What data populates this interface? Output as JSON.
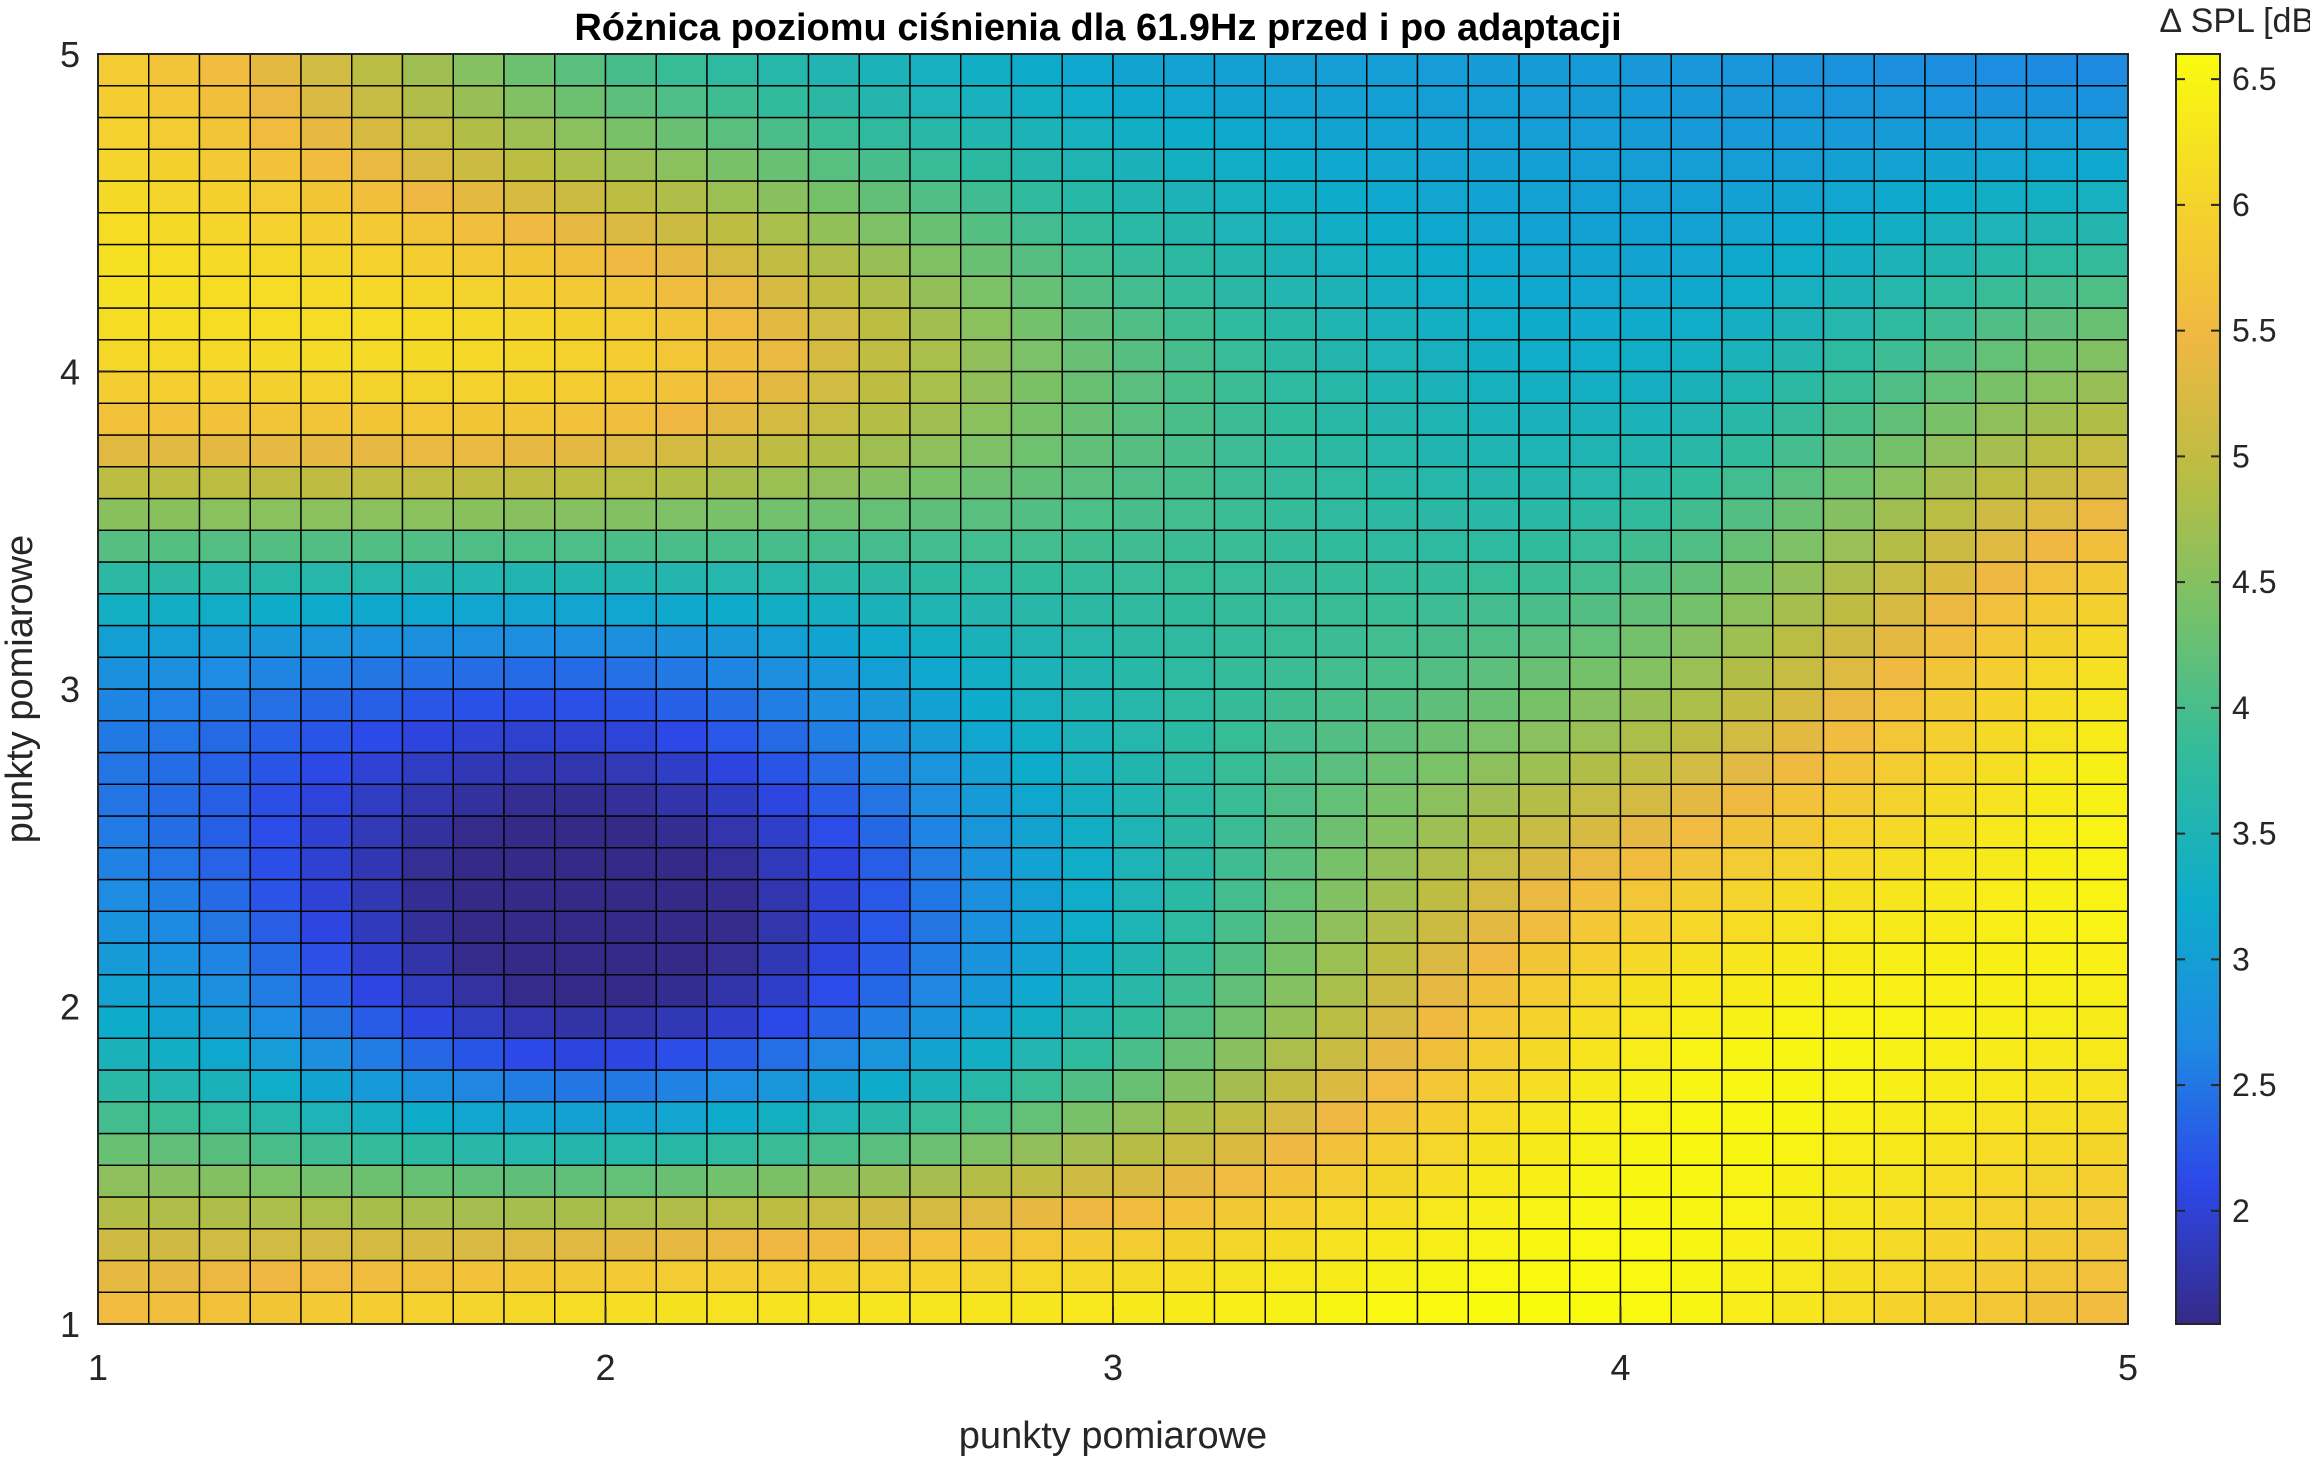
{
  "chart_data": {
    "type": "heatmap",
    "title": "Różnica poziomu ciśnienia dla 61.9Hz przed i po adaptacji",
    "xlabel": "punkty pomiarowe",
    "ylabel": "punkty pomiarowe",
    "xlim": [
      1,
      5
    ],
    "ylim": [
      1,
      5
    ],
    "x_ticks": [
      "1",
      "2",
      "3",
      "4",
      "5"
    ],
    "y_ticks": [
      "1",
      "2",
      "3",
      "4",
      "5"
    ],
    "grid_cells": [
      40,
      40
    ],
    "colormap": "parula",
    "colorbar": {
      "label": "∆ SPL [dB]",
      "range": [
        1.55,
        6.6
      ],
      "ticks": [
        "2",
        "2.5",
        "3",
        "3.5",
        "4",
        "4.5",
        "5",
        "5.5",
        "6",
        "6.5"
      ]
    },
    "colors": {
      "parula": [
        "#352a87",
        "#2c48e8",
        "#1e8be2",
        "#0eaccb",
        "#30bb9d",
        "#73c16b",
        "#b9bd43",
        "#f0b842",
        "#f5d52a",
        "#f9fb0e"
      ]
    },
    "anchor_values": {
      "x": [
        1,
        2,
        3,
        4,
        5
      ],
      "y": [
        1,
        2,
        3,
        4,
        5
      ],
      "z": [
        [
          5.6,
          6.3,
          6.4,
          6.6,
          5.5
        ],
        [
          3.2,
          1.6,
          3.6,
          6.2,
          6.4
        ],
        [
          2.7,
          2.3,
          3.6,
          4.5,
          6.3
        ],
        [
          6.0,
          5.9,
          4.2,
          3.3,
          4.6
        ],
        [
          5.9,
          4.0,
          3.1,
          2.9,
          2.6
        ]
      ]
    }
  }
}
